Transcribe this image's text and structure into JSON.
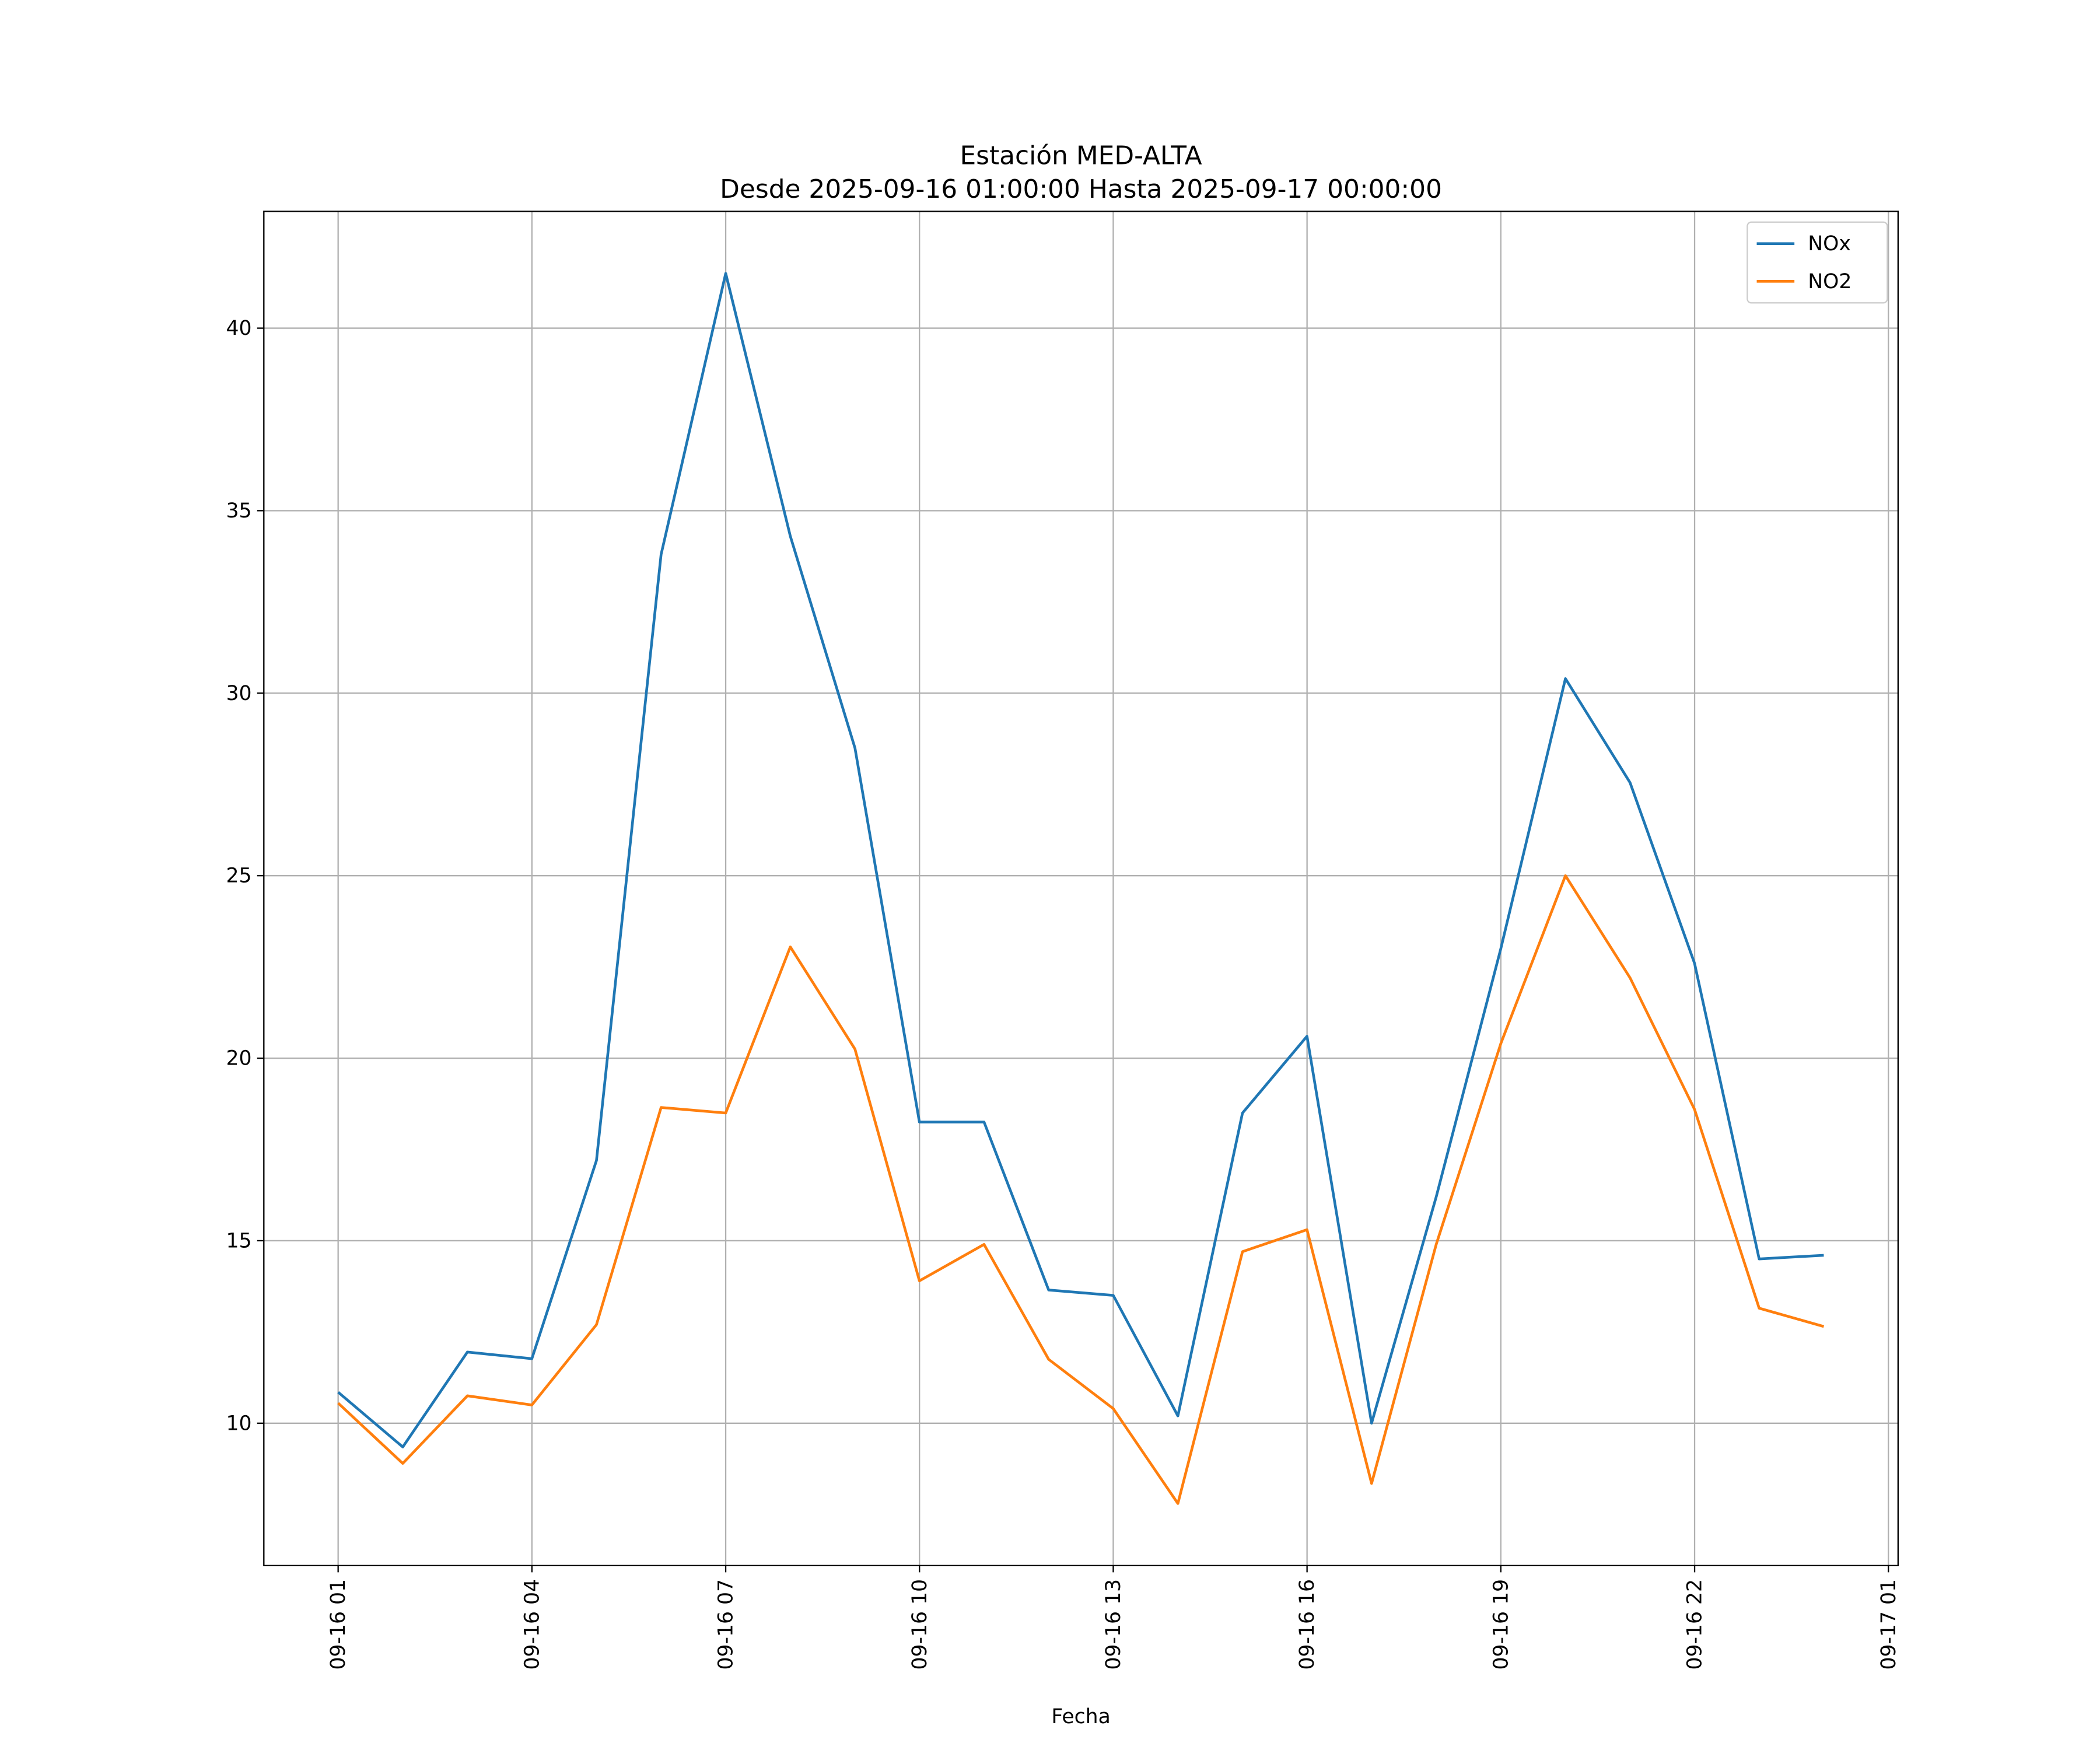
{
  "chart_data": {
    "type": "line",
    "title": "Estación MED-ALTA",
    "subtitle": "Desde 2025-09-16 01:00:00 Hasta 2025-09-17 00:00:00",
    "xlabel": "Fecha",
    "ylabel": "",
    "x_hours_from_start": [
      0,
      1,
      2,
      3,
      4,
      5,
      6,
      7,
      8,
      9,
      10,
      11,
      12,
      13,
      14,
      15,
      16,
      17,
      18,
      19,
      20,
      21,
      22,
      23
    ],
    "xlim_hours": [
      -1.15,
      24.15
    ],
    "ylim": [
      6.1,
      43.2
    ],
    "yticks": [
      10,
      15,
      20,
      25,
      30,
      35,
      40
    ],
    "xticks_hours": [
      0,
      3,
      6,
      9,
      12,
      15,
      18,
      21,
      24
    ],
    "xtick_labels": [
      "09-16 01",
      "09-16 04",
      "09-16 07",
      "09-16 10",
      "09-16 13",
      "09-16 16",
      "09-16 19",
      "09-16 22",
      "09-17 01"
    ],
    "grid": true,
    "legend_position": "top-right",
    "series": [
      {
        "name": "NOx",
        "color": "#1f77b4",
        "values": [
          10.85,
          9.35,
          11.95,
          11.77,
          17.2,
          33.8,
          41.5,
          34.3,
          28.5,
          18.25,
          18.25,
          13.65,
          13.5,
          10.2,
          18.5,
          20.6,
          10.0,
          16.2,
          23.0,
          30.4,
          27.55,
          22.6,
          14.5,
          14.6
        ]
      },
      {
        "name": "NO2",
        "color": "#ff7f0e",
        "values": [
          10.55,
          8.9,
          10.75,
          10.5,
          12.7,
          18.65,
          18.5,
          23.05,
          20.25,
          13.9,
          14.9,
          11.75,
          10.4,
          7.8,
          14.7,
          15.3,
          8.35,
          14.9,
          20.4,
          25.0,
          22.2,
          18.6,
          13.15,
          12.65
        ]
      }
    ]
  }
}
